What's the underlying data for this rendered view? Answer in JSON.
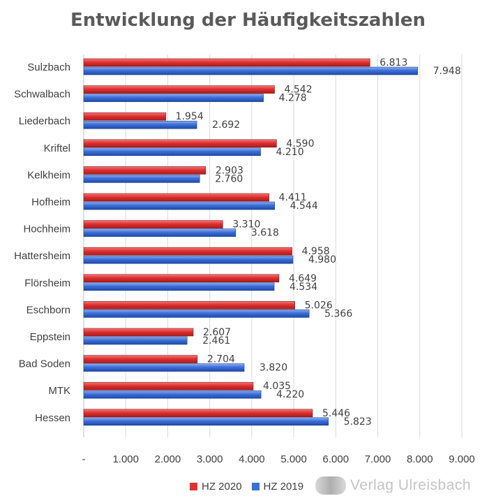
{
  "chart_data": {
    "type": "bar",
    "orientation": "horizontal",
    "title": "Entwicklung der Häufigkeitszahlen",
    "categories": [
      "Sulzbach",
      "Schwalbach",
      "Liederbach",
      "Kriftel",
      "Kelkheim",
      "Hofheim",
      "Hochheim",
      "Hattersheim",
      "Flörsheim",
      "Eschborn",
      "Eppstein",
      "Bad Soden",
      "MTK",
      "Hessen"
    ],
    "series": [
      {
        "name": "HZ 2020",
        "color": "#e03030",
        "values": [
          6813,
          4542,
          1954,
          4590,
          2903,
          4411,
          3310,
          4958,
          4649,
          5026,
          2607,
          2704,
          4035,
          5446
        ],
        "labels": [
          "6.813",
          "4.542",
          "1.954",
          "4.590",
          "2.903",
          "4.411",
          "3.310",
          "4.958",
          "4.649",
          "5.026",
          "2.607",
          "2.704",
          "4.035",
          "5.446"
        ]
      },
      {
        "name": "HZ 2019",
        "color": "#3c6fd8",
        "values": [
          7948,
          4278,
          2692,
          4210,
          2760,
          4544,
          3618,
          4980,
          4534,
          5366,
          2461,
          3820,
          4220,
          5823
        ],
        "labels": [
          "7.948",
          "4.278",
          "2.692",
          "4.210",
          "2.760",
          "4.544",
          "3.618",
          "4.980",
          "4.534",
          "5.366",
          "2.461",
          "3.820",
          "4.220",
          "5.823"
        ]
      }
    ],
    "xlim": [
      0,
      9000
    ],
    "xticks": [
      0,
      1000,
      2000,
      3000,
      4000,
      5000,
      6000,
      7000,
      8000,
      9000
    ],
    "xtick_labels": [
      "-",
      "1.000",
      "2.000",
      "3.000",
      "4.000",
      "5.000",
      "6.000",
      "7.000",
      "8.000",
      "9.000"
    ],
    "grid": true,
    "legend_position": "bottom"
  },
  "watermark": {
    "text": "Verlag Ulreisbach",
    "icon": "crest-icon"
  }
}
